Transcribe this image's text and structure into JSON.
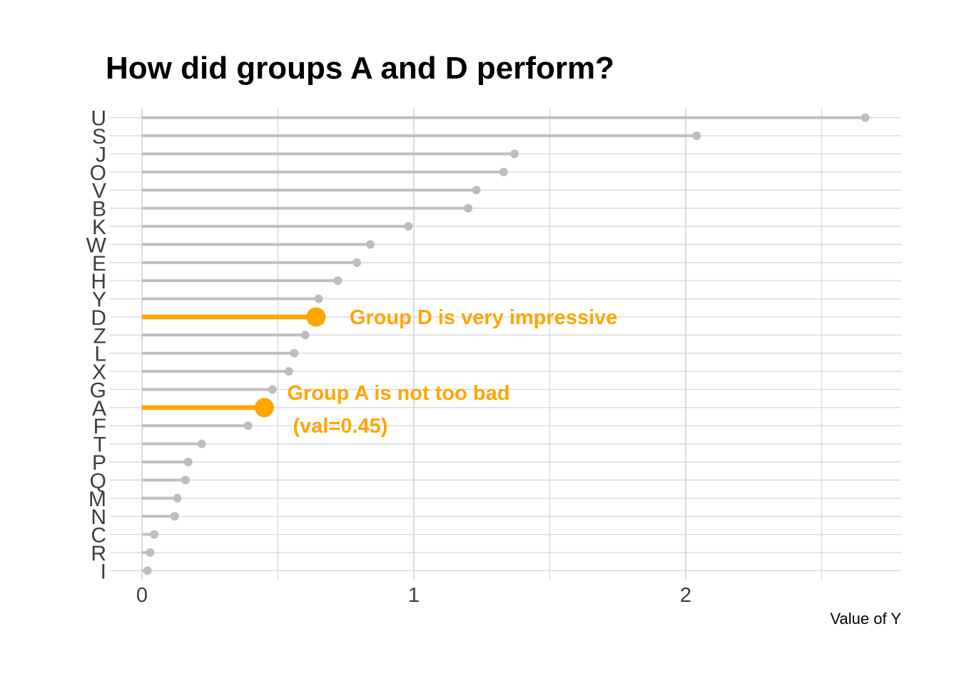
{
  "colors": {
    "highlight": "#FFA500",
    "stem": "#bfbfbf",
    "dot": "#bdbdbd",
    "grid_major": "#cccccc",
    "grid_minor": "#d9d9d9",
    "axis_text": "#3d3d3d",
    "title_text": "#000000",
    "xlabel_text": "#000000",
    "background": "#ffffff"
  },
  "annotations": {
    "group_d": {
      "text": "Group D is very impressive",
      "anchor_category": "D"
    },
    "group_a": {
      "line1": "Group A is not too bad",
      "line2": "(val=0.45)",
      "anchor_category": "A"
    }
  },
  "chart_data": {
    "type": "bar",
    "style": "horizontal-lollipop",
    "title": "How did groups A and D perform?",
    "xlabel": "Value of Y",
    "ylabel": "",
    "categories": [
      "U",
      "S",
      "J",
      "O",
      "V",
      "B",
      "K",
      "W",
      "E",
      "H",
      "Y",
      "D",
      "Z",
      "L",
      "X",
      "G",
      "A",
      "F",
      "T",
      "P",
      "Q",
      "M",
      "N",
      "C",
      "R",
      "I"
    ],
    "values": [
      2.66,
      2.04,
      1.37,
      1.33,
      1.23,
      1.2,
      0.98,
      0.84,
      0.79,
      0.72,
      0.65,
      0.64,
      0.6,
      0.56,
      0.54,
      0.48,
      0.45,
      0.39,
      0.22,
      0.17,
      0.16,
      0.13,
      0.12,
      0.045,
      0.03,
      0.02
    ],
    "highlighted_categories": [
      "D",
      "A"
    ],
    "xticks": [
      0,
      1,
      2
    ],
    "xlim": [
      0,
      2.79
    ],
    "x_grid_step": 0.5,
    "grid": true,
    "legend": false
  }
}
